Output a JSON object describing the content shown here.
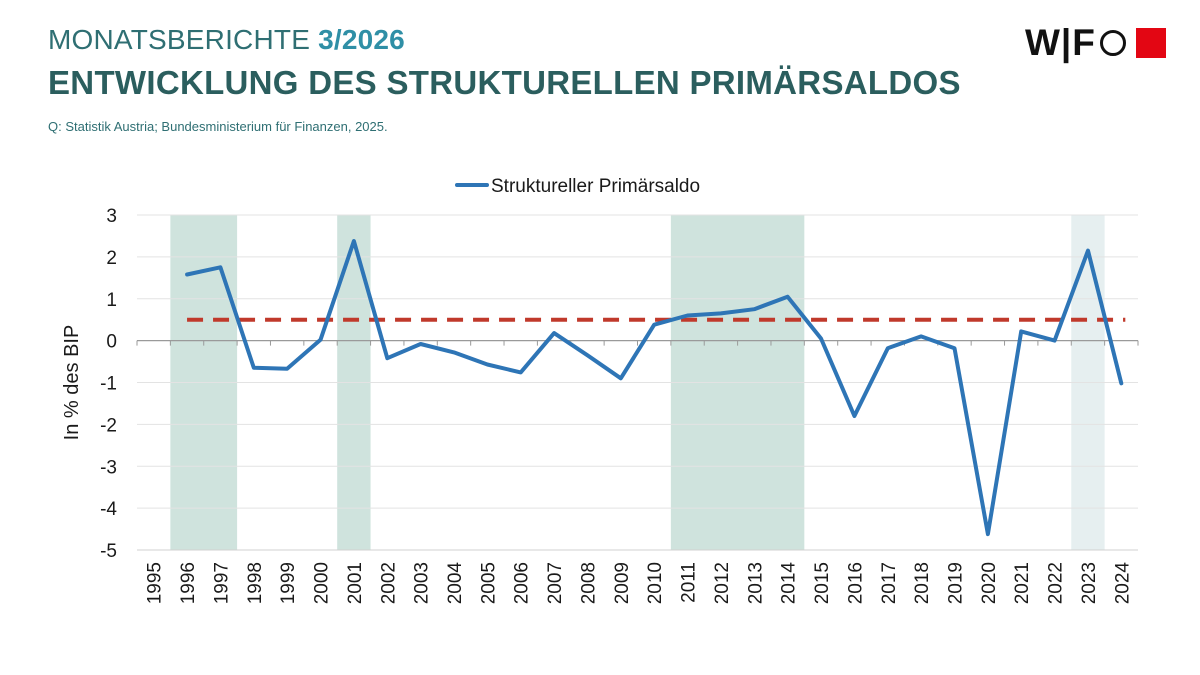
{
  "header": {
    "series_name": "MONATSBERICHTE",
    "issue": "3/2026",
    "title": "ENTWICKLUNG DES STRUKTURELLEN PRIMÄRSALDOS",
    "source": "Q: Statistik Austria; Bundesministerium für Finanzen, 2025."
  },
  "logo": {
    "text": "WIFO",
    "letters": "W|F",
    "square_color": "#e30613"
  },
  "chart_data": {
    "type": "line",
    "title": "",
    "xlabel": "",
    "ylabel": "In % des BIP",
    "ylim": [
      -5,
      3
    ],
    "yticks": [
      3,
      2,
      1,
      0,
      -1,
      -2,
      -3,
      -4,
      -5
    ],
    "categories": [
      "1995",
      "1996",
      "1997",
      "1998",
      "1999",
      "2000",
      "2001",
      "2002",
      "2003",
      "2004",
      "2005",
      "2006",
      "2007",
      "2008",
      "2009",
      "2010",
      "2011",
      "2012",
      "2013",
      "2014",
      "2015",
      "2016",
      "2017",
      "2018",
      "2019",
      "2020",
      "2021",
      "2022",
      "2023",
      "2024"
    ],
    "series": [
      {
        "name": "Struktureller Primärsaldo",
        "color": "#2e75b6",
        "values": [
          null,
          1.58,
          1.75,
          -0.65,
          -0.67,
          0.02,
          2.38,
          -0.42,
          -0.08,
          -0.28,
          -0.57,
          -0.76,
          0.18,
          -0.35,
          -0.9,
          0.38,
          0.6,
          0.65,
          0.75,
          1.05,
          0.05,
          -1.8,
          -0.18,
          0.1,
          -0.18,
          -4.62,
          0.22,
          0.0,
          2.15,
          -1.02
        ]
      }
    ],
    "reference_line": {
      "value": 0.5,
      "color": "#c0392b",
      "style": "dashed",
      "from": "1996",
      "to": "2024"
    },
    "shaded_periods": [
      {
        "from": "1996",
        "to": "1997",
        "color": "#cfe3dd"
      },
      {
        "from": "2001",
        "to": "2001",
        "color": "#cfe3dd"
      },
      {
        "from": "2011",
        "to": "2014",
        "color": "#cfe3dd"
      },
      {
        "from": "2023",
        "to": "2023",
        "color": "#e6eff0"
      }
    ],
    "grid": true,
    "legend_position": "top-center"
  }
}
